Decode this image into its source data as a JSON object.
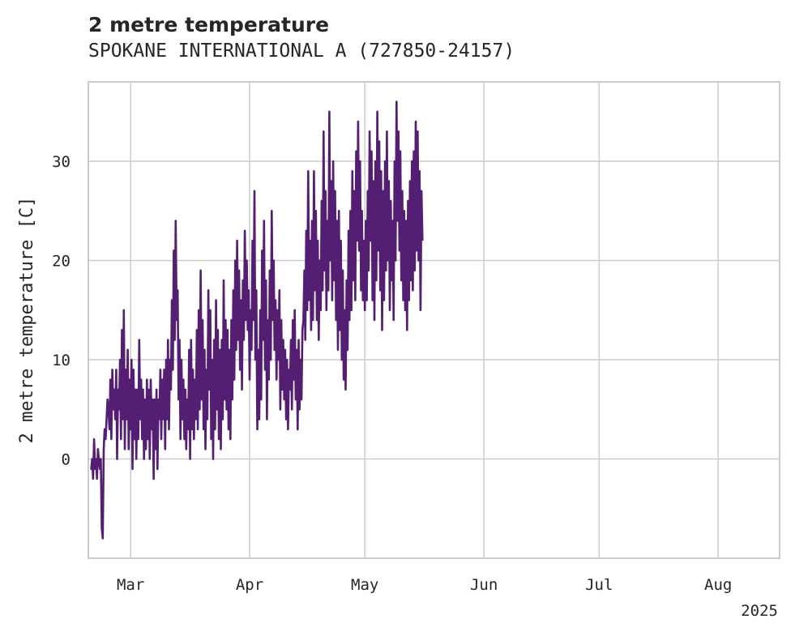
{
  "chart_data": {
    "type": "line",
    "title": "2 metre temperature",
    "subtitle": "SPOKANE INTERNATIONAL A (727850-24157)",
    "ylabel": "2 metre temperature [C]",
    "xlabel": "",
    "x_range": [
      "2025-02-18",
      "2025-08-17"
    ],
    "ylim": [
      -10,
      38
    ],
    "yticks": [
      0,
      10,
      20,
      30
    ],
    "xticks": [
      {
        "date": "2025-03-01",
        "label": "Mar"
      },
      {
        "date": "2025-04-01",
        "label": "Apr"
      },
      {
        "date": "2025-05-01",
        "label": "May"
      },
      {
        "date": "2025-06-01",
        "label": "Jun"
      },
      {
        "date": "2025-07-01",
        "label": "Jul"
      },
      {
        "date": "2025-08-01",
        "label": "Aug"
      }
    ],
    "year_label": "2025",
    "grid": true,
    "legend": "none",
    "series": [
      {
        "color": "#541f73",
        "sample_interval_hours": 6,
        "start": "2025-02-18T12:00",
        "values": [
          -1,
          -1,
          0,
          -2,
          2,
          -1,
          0,
          -2,
          1,
          0,
          -1,
          0,
          -7,
          -8,
          1,
          3,
          2,
          4,
          6,
          5,
          3,
          8,
          2,
          9,
          5,
          7,
          4,
          9,
          0,
          7,
          5,
          10,
          2,
          13,
          4,
          15,
          1,
          9,
          4,
          11,
          1,
          8,
          3,
          10,
          -1,
          9,
          2,
          7,
          0,
          7,
          2,
          12,
          4,
          8,
          2,
          7,
          0,
          6,
          1,
          8,
          2,
          7,
          0,
          8,
          3,
          6,
          -2,
          6,
          1,
          7,
          -1,
          6,
          4,
          9,
          2,
          8,
          4,
          9,
          1,
          10,
          4,
          12,
          3,
          10,
          7,
          16,
          9,
          21,
          12,
          24,
          14,
          17,
          6,
          12,
          2,
          10,
          4,
          8,
          2,
          7,
          1,
          6,
          3,
          11,
          0,
          12,
          3,
          9,
          2,
          8,
          4,
          13,
          3,
          15,
          5,
          19,
          6,
          14,
          3,
          11,
          1,
          9,
          4,
          17,
          7,
          15,
          2,
          10,
          0,
          12,
          3,
          16,
          5,
          13,
          2,
          11,
          1,
          12,
          4,
          18,
          6,
          14,
          5,
          13,
          3,
          11,
          2,
          14,
          6,
          17,
          8,
          20,
          11,
          22,
          12,
          19,
          9,
          16,
          7,
          18,
          12,
          23,
          14,
          20,
          13,
          17,
          8,
          15,
          11,
          22,
          14,
          27,
          10,
          17,
          3,
          11,
          4,
          15,
          6,
          21,
          12,
          24,
          9,
          18,
          4,
          14,
          8,
          19,
          10,
          25,
          14,
          20,
          11,
          16,
          8,
          15,
          10,
          17,
          5,
          14,
          7,
          12,
          6,
          11,
          4,
          10,
          3,
          9,
          7,
          12,
          5,
          14,
          8,
          15,
          6,
          11,
          3,
          12,
          5,
          10,
          6,
          13,
          14,
          19,
          12,
          23,
          15,
          29,
          16,
          22,
          13,
          24,
          14,
          29,
          17,
          25,
          14,
          22,
          12,
          20,
          15,
          26,
          17,
          33,
          19,
          27,
          15,
          24,
          17,
          35,
          20,
          28,
          16,
          30,
          18,
          27,
          14,
          24,
          11,
          25,
          13,
          22,
          10,
          19,
          8,
          15,
          7,
          18,
          11,
          23,
          14,
          25,
          15,
          29,
          18,
          27,
          16,
          31,
          22,
          34,
          21,
          30,
          17,
          25,
          16,
          22,
          15,
          24,
          16,
          27,
          19,
          33,
          22,
          31,
          16,
          28,
          14,
          30,
          18,
          35,
          21,
          32,
          17,
          29,
          13,
          27,
          16,
          30,
          19,
          33,
          20,
          28,
          15,
          26,
          18,
          24,
          14,
          30,
          20,
          36,
          24,
          33,
          21,
          31,
          18,
          27,
          16,
          25,
          15,
          24,
          13,
          26,
          16,
          28,
          18,
          30,
          17,
          31,
          19,
          34,
          21,
          33,
          20,
          29,
          15,
          27,
          22
        ]
      }
    ]
  }
}
